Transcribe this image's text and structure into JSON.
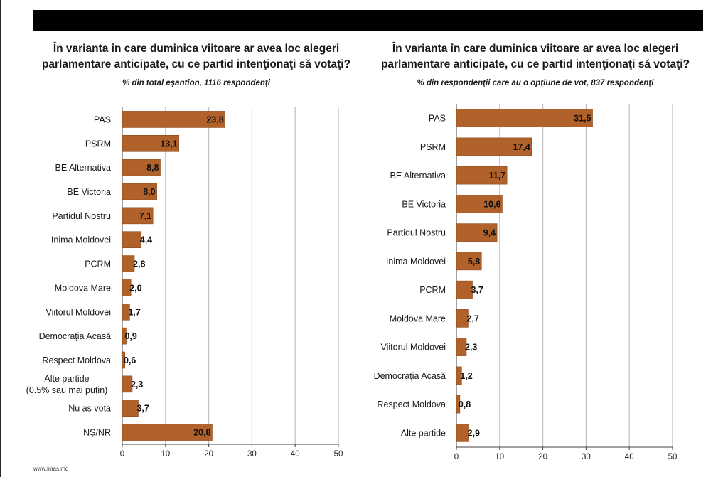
{
  "footer": "www.imas.md",
  "colors": {
    "bar": "#b0622a",
    "bar_edge": "#8a4a1c",
    "grid": "#bfbfbf",
    "axis": "#404040",
    "header_bar": "#000000"
  },
  "chart_data": [
    {
      "type": "bar",
      "orientation": "horizontal",
      "title": "În varianta în care duminica viitoare ar avea loc alegeri\nparlamentare anticipate, cu ce partid intenţionaţi să votaţi?",
      "subtitle": "% din total eșantion, 1116 respondenți",
      "xlim": [
        0,
        50
      ],
      "xticks": [
        "0",
        "10",
        "20",
        "30",
        "40",
        "50"
      ],
      "grid": true,
      "categories": [
        "PAS",
        "PSRM",
        "BE Alternativa",
        "BE Victoria",
        "Partidul Nostru",
        "Inima Moldovei",
        "PCRM",
        "Moldova Mare",
        "Viitorul Moldovei",
        "Democrația Acasă",
        "Respect Moldova",
        "Alte partide\n(0.5% sau mai puțin)",
        "Nu as vota",
        "NȘ/NR"
      ],
      "values": [
        23.8,
        13.1,
        8.8,
        8.0,
        7.1,
        4.4,
        2.8,
        2.0,
        1.7,
        0.9,
        0.6,
        2.3,
        3.7,
        20.8
      ],
      "labels": [
        "23,8",
        "13,1",
        "8,8",
        "8,0",
        "7,1",
        "4,4",
        "2,8",
        "2,0",
        "1,7",
        "0,9",
        "0,6",
        "2,3",
        "3,7",
        "20,8"
      ]
    },
    {
      "type": "bar",
      "orientation": "horizontal",
      "title": "În varianta în care duminica viitoare ar avea loc alegeri\nparlamentare anticipate, cu ce partid intenţionaţi să votaţi?",
      "subtitle": "% din respondenţii care au o opţiune de vot, 837 respondenți",
      "xlim": [
        0,
        50
      ],
      "xticks": [
        "0",
        "10",
        "20",
        "30",
        "40",
        "50"
      ],
      "grid": true,
      "categories": [
        "PAS",
        "PSRM",
        "BE Alternativa",
        "BE Victoria",
        "Partidul Nostru",
        "Inima Moldovei",
        "PCRM",
        "Moldova Mare",
        "Viitorul Moldovei",
        "Democrația Acasă",
        "Respect Moldova",
        "Alte partide"
      ],
      "values": [
        31.5,
        17.4,
        11.7,
        10.6,
        9.4,
        5.8,
        3.7,
        2.7,
        2.3,
        1.2,
        0.8,
        2.9
      ],
      "labels": [
        "31,5",
        "17,4",
        "11,7",
        "10,6",
        "9,4",
        "5,8",
        "3,7",
        "2,7",
        "2,3",
        "1,2",
        "0,8",
        "2,9"
      ]
    }
  ]
}
